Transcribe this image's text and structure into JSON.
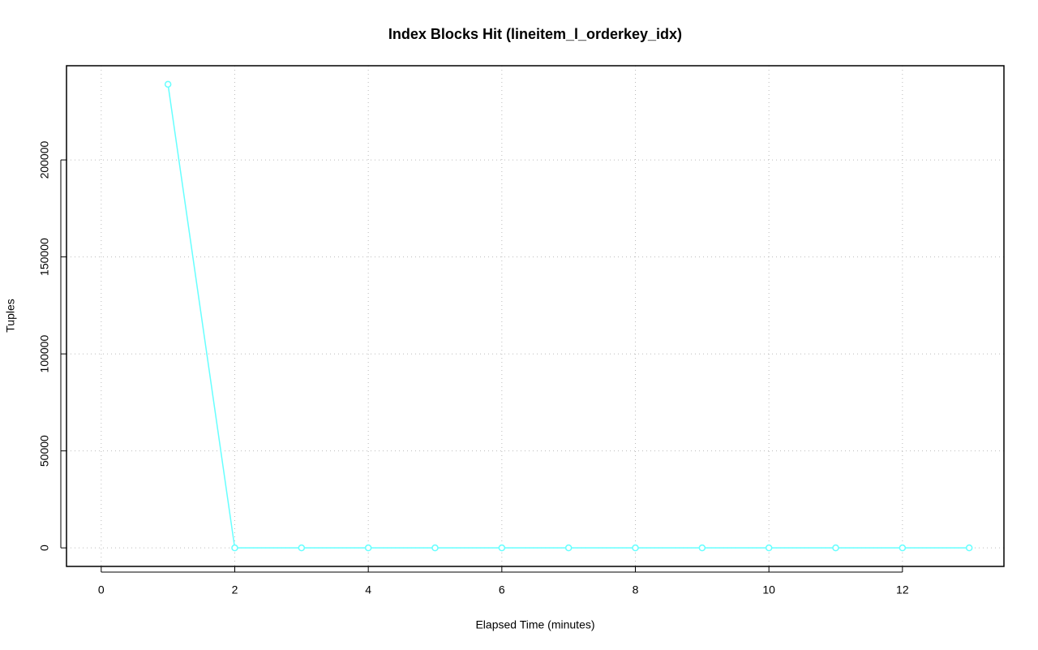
{
  "chart_data": {
    "type": "line",
    "title": "Index Blocks Hit (lineitem_l_orderkey_idx)",
    "x_label": "Elapsed Time (minutes)",
    "y_label": "Tuples",
    "x": [
      1,
      2,
      3,
      4,
      5,
      6,
      7,
      8,
      9,
      10,
      11,
      12,
      13
    ],
    "series": [
      {
        "color": "#66ffff",
        "values": [
          239000,
          0,
          0,
          0,
          0,
          0,
          0,
          0,
          0,
          0,
          0,
          0,
          0
        ]
      }
    ],
    "xlim": [
      -0.52,
      13.52
    ],
    "xticks": [
      0,
      2,
      4,
      6,
      8,
      10,
      12
    ],
    "ylim": [
      -9560,
      248560
    ],
    "yticks": [
      0,
      50000,
      100000,
      150000,
      200000
    ],
    "grid": true
  }
}
